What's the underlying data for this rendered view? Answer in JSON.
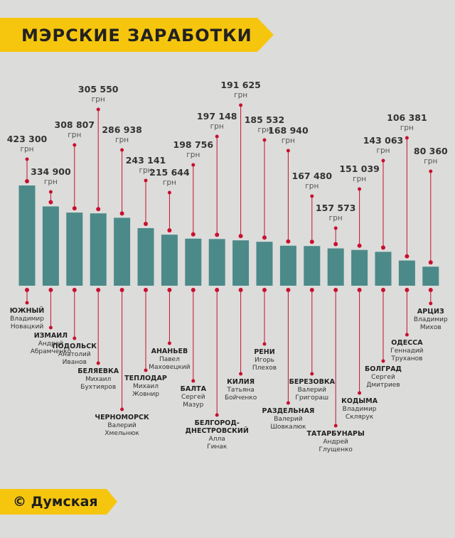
{
  "title": "МЭРСКИЕ ЗАРАБОТКИ",
  "brand": "© Думская",
  "colors": {
    "banner": "#f6c60f",
    "bar": "#4b8a89",
    "line": "#c8102e",
    "background": "#dcdcdb"
  },
  "chart_data": {
    "type": "bar",
    "unit": "грн",
    "categories": [
      "ЮЖНЫЙ",
      "ИЗМАИЛ",
      "ПОДОЛЬСК",
      "БЕЛЯЕВКА",
      "ЧЕРНОМОРСК",
      "ТЕПЛОДАР",
      "АНАНЬЕВ",
      "БАЛТА",
      "БЕЛГОРОД-ДНЕСТРОВСКИЙ",
      "КИЛИЯ",
      "РЕНИ",
      "РАЗДЕЛЬНАЯ",
      "БЕРЕЗОВКА",
      "ТАТАРБУНАРЫ",
      "КОДЫМА",
      "БОЛГРАД",
      "ОДЕССА",
      "АРЦИЗ"
    ],
    "value_labels": [
      "423 300",
      "334 900",
      "308 807",
      "305 550",
      "286 938",
      "243 141",
      "215 644",
      "198 756",
      "197 148",
      "191 625",
      "185 532",
      "168 940",
      "167 480",
      "157 573",
      "151 039",
      "143 063",
      "106 381",
      "80 360"
    ],
    "values": [
      423300,
      334900,
      308807,
      305550,
      286938,
      243141,
      215644,
      198756,
      197148,
      191625,
      185532,
      168940,
      167480,
      157573,
      151039,
      143063,
      106381,
      80360
    ],
    "mayors": [
      [
        "Владимир",
        "Новацкий"
      ],
      [
        "Андрей",
        "Абрамченко"
      ],
      [
        "Анатолий",
        "Иванов"
      ],
      [
        "Михаил",
        "Бухтияров"
      ],
      [
        "Валерий",
        "Хмельнюк"
      ],
      [
        "Михаил",
        "Жовнир"
      ],
      [
        "Павел",
        "Маховецкий"
      ],
      [
        "Сергей",
        "Мазур"
      ],
      [
        "Алла",
        "Гинак"
      ],
      [
        "Татьяна",
        "Бойченко"
      ],
      [
        "Игорь",
        "Плехов"
      ],
      [
        "Валерий",
        "Шовкалюк"
      ],
      [
        "Валерий",
        "Григораш"
      ],
      [
        "Андрей",
        "Глущенко"
      ],
      [
        "Владимир",
        "Склярук"
      ],
      [
        "Сергей",
        "Дмитриев"
      ],
      [
        "Геннадий",
        "Труханов"
      ],
      [
        "Владимир",
        "Михов"
      ]
    ]
  }
}
